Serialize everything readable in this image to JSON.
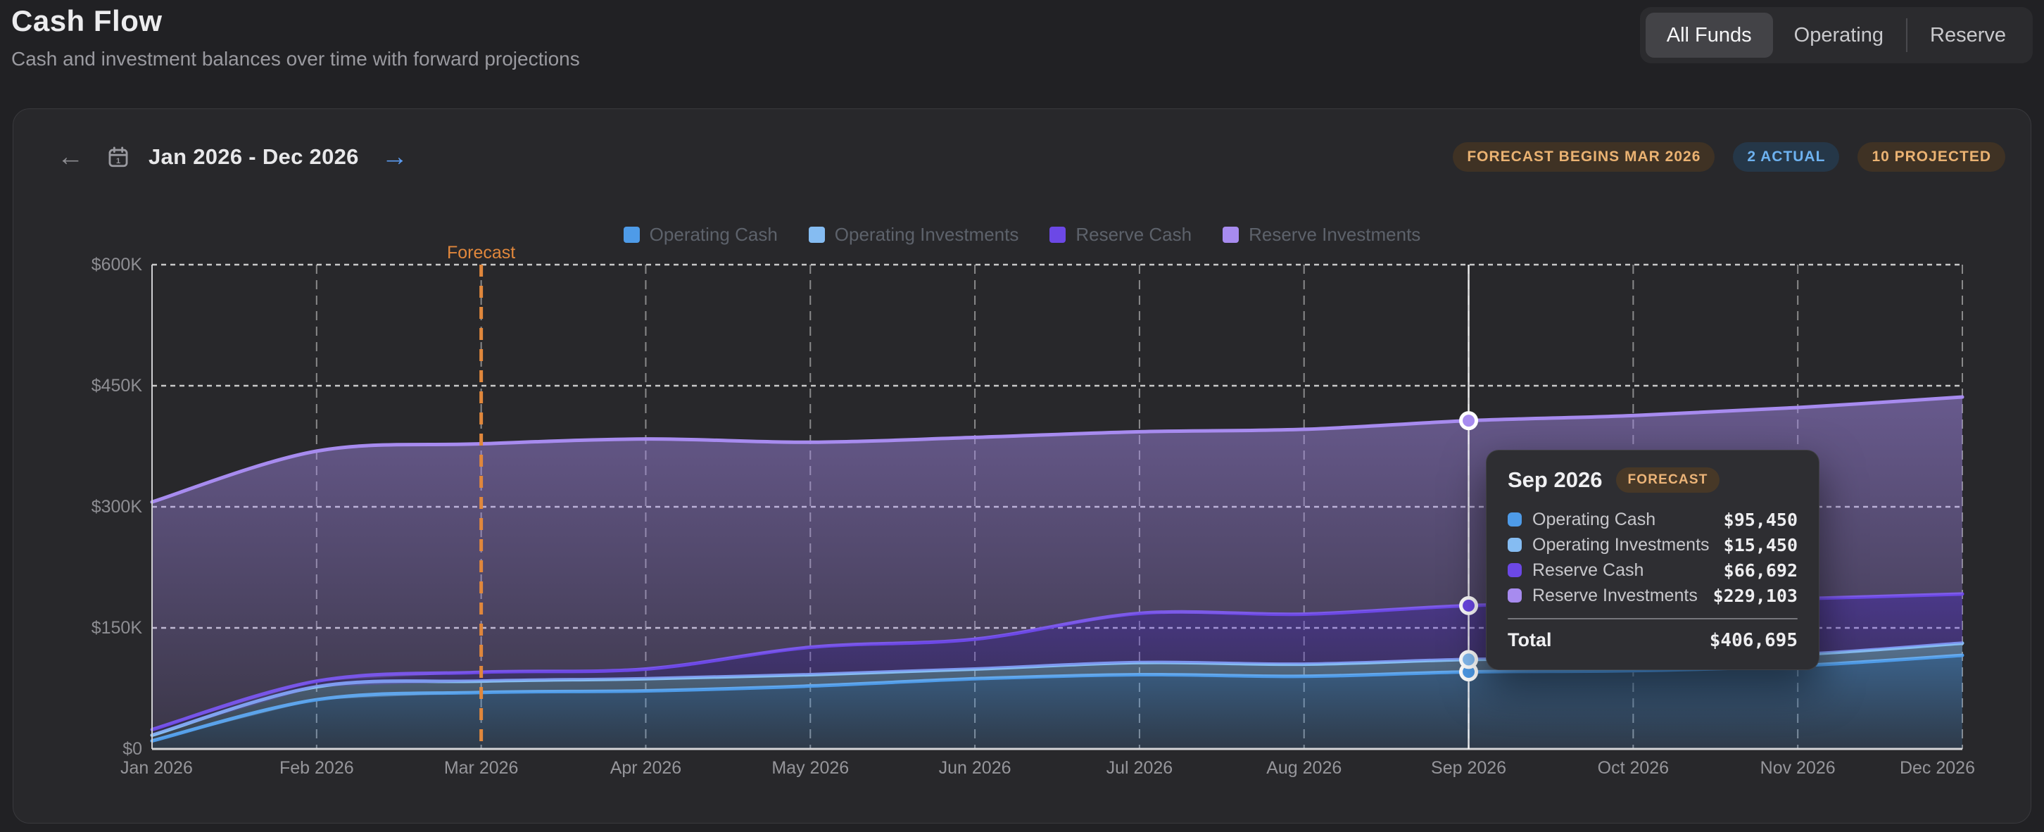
{
  "page": {
    "title": "Cash Flow",
    "subtitle": "Cash and investment balances over time with forward projections"
  },
  "fund_tabs": [
    {
      "label": "All Funds",
      "active": true
    },
    {
      "label": "Operating",
      "active": false
    },
    {
      "label": "Reserve",
      "active": false
    }
  ],
  "date_nav": {
    "prev_icon": "arrow-left",
    "calendar_icon": "calendar",
    "range_label": "Jan 2026 - Dec 2026",
    "next_icon": "arrow-right"
  },
  "status_badges": {
    "forecast_begins": "FORECAST BEGINS MAR 2026",
    "actual": "2 ACTUAL",
    "projected": "10 PROJECTED"
  },
  "colors": {
    "accent_blue": "#5b9bf0",
    "forecast_orange": "#e0873c",
    "badge_amber_text": "#eab272",
    "badge_amber_bg": "#3f3224",
    "badge_blue_text": "#6db1ef",
    "badge_blue_bg": "#253748",
    "card_bg": "#28282b",
    "page_bg": "#212124"
  },
  "chart_data": {
    "type": "area",
    "stacked": true,
    "title": "Cash Flow",
    "x": [
      "Jan 2026",
      "Feb 2026",
      "Mar 2026",
      "Apr 2026",
      "May 2026",
      "Jun 2026",
      "Jul 2026",
      "Aug 2026",
      "Sep 2026",
      "Oct 2026",
      "Nov 2026",
      "Dec 2026"
    ],
    "series": [
      {
        "name": "Operating Cash",
        "color": "#4e9be8",
        "values": [
          10000,
          61000,
          70000,
          72000,
          78000,
          87000,
          92000,
          90000,
          95450,
          97000,
          103000,
          116000
        ]
      },
      {
        "name": "Operating Investments",
        "color": "#85bcf2",
        "values": [
          7000,
          16000,
          14000,
          15000,
          14000,
          12000,
          15000,
          15000,
          15450,
          16000,
          14000,
          15000
        ]
      },
      {
        "name": "Reserve Cash",
        "color": "#6c48e6",
        "values": [
          7000,
          7000,
          11000,
          12000,
          34000,
          37000,
          61000,
          62000,
          66692,
          68000,
          69000,
          61000
        ]
      },
      {
        "name": "Reserve Investments",
        "color": "#a78bef",
        "values": [
          282000,
          285000,
          283000,
          285000,
          254000,
          250000,
          225000,
          229000,
          229103,
          232000,
          237000,
          244000
        ]
      }
    ],
    "y_ticks": [
      {
        "value": 0,
        "label": "$0"
      },
      {
        "value": 150000,
        "label": "$150K"
      },
      {
        "value": 300000,
        "label": "$300K"
      },
      {
        "value": 450000,
        "label": "$450K"
      },
      {
        "value": 600000,
        "label": "$600K"
      }
    ],
    "ylim": [
      0,
      600000
    ],
    "grid": true,
    "legend_position": "top-center",
    "forecast_start_index": 2,
    "forecast_label": "Forecast",
    "hover_index": 8
  },
  "tooltip": {
    "title": "Sep 2026",
    "badge": "FORECAST",
    "rows": [
      {
        "label": "Operating Cash",
        "value": "$95,450"
      },
      {
        "label": "Operating Investments",
        "value": "$15,450"
      },
      {
        "label": "Reserve Cash",
        "value": "$66,692"
      },
      {
        "label": "Reserve Investments",
        "value": "$229,103"
      }
    ],
    "total_label": "Total",
    "total_value": "$406,695"
  }
}
